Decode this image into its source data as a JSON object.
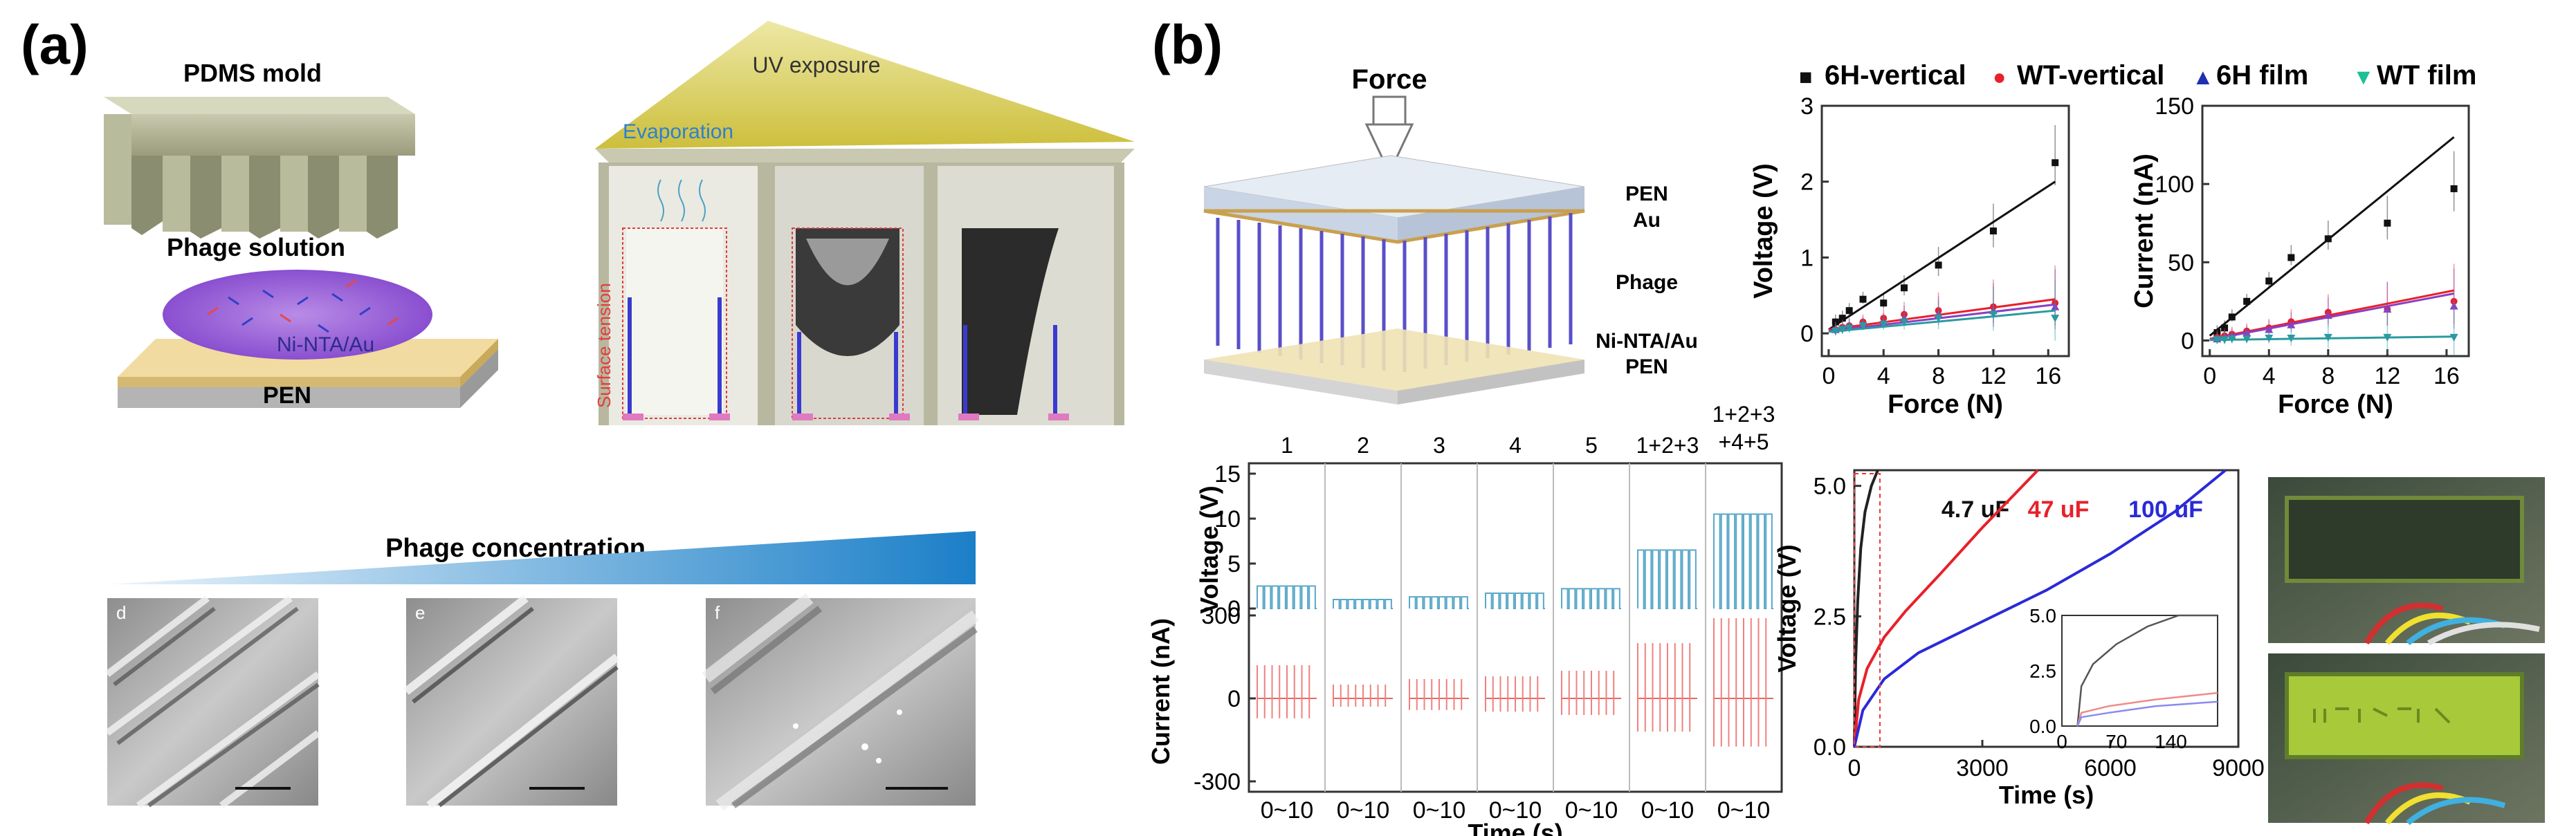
{
  "panel_labels": {
    "a": "(a)",
    "b": "(b)"
  },
  "panel_a": {
    "pdms_mold": "PDMS mold",
    "phage_solution": "Phage solution",
    "ni_nta_au": "Ni-NTA/Au",
    "pen": "PEN",
    "uv_exposure": "UV exposure",
    "evaporation": "Evaporation",
    "surface_tension": "Surface tension",
    "phage_concentration": "Phage concentration",
    "sem_labels": [
      "d",
      "e",
      "f"
    ]
  },
  "panel_b": {
    "force": "Force",
    "layer_labels": [
      "PEN",
      "Au",
      "Phage",
      "Ni-NTA/Au",
      "PEN"
    ]
  },
  "legend": [
    {
      "label": "6H-vertical",
      "marker": "■",
      "color": "#111111"
    },
    {
      "label": "WT-vertical",
      "marker": "●",
      "color": "#e8202a"
    },
    {
      "label": "6H film",
      "marker": "▲",
      "color": "#1f2fb0"
    },
    {
      "label": "WT film",
      "marker": "▼",
      "color": "#1dbf96"
    }
  ],
  "colors": {
    "sem_gradient_start": "#eaf4fb",
    "sem_gradient_end": "#1b7fc8",
    "film_purple": "#8a3fc2",
    "film_teal": "#2a9aa0"
  },
  "chart_data": [
    {
      "type": "scatter",
      "title": "",
      "xlabel": "Force (N)",
      "ylabel": "Voltage (V)",
      "xlim": [
        -0.5,
        17.5
      ],
      "ylim": [
        -0.3,
        3
      ],
      "xticks": [
        "0",
        "4",
        "8",
        "12",
        "16"
      ],
      "yticks": [
        "0",
        "1",
        "2",
        "3"
      ],
      "series": [
        {
          "name": "6H-vertical",
          "x": [
            0.5,
            1,
            1.5,
            2.5,
            4,
            5.5,
            8,
            12,
            16.5
          ],
          "y": [
            0.15,
            0.2,
            0.3,
            0.45,
            0.4,
            0.6,
            0.9,
            1.35,
            2.25
          ],
          "fit": [
            0.05,
            2.0
          ]
        },
        {
          "name": "WT-vertical",
          "x": [
            0.5,
            1,
            1.5,
            2.5,
            4,
            5.5,
            8,
            12,
            16.5
          ],
          "y": [
            0.05,
            0.08,
            0.1,
            0.15,
            0.2,
            0.25,
            0.3,
            0.35,
            0.4
          ],
          "fit": [
            0.05,
            0.45
          ]
        },
        {
          "name": "6H film",
          "x": [
            0.5,
            1,
            1.5,
            2.5,
            4,
            5.5,
            8,
            12,
            16.5
          ],
          "y": [
            0.05,
            0.07,
            0.1,
            0.12,
            0.15,
            0.2,
            0.25,
            0.3,
            0.35
          ],
          "fit": [
            0.03,
            0.38
          ]
        },
        {
          "name": "WT film",
          "x": [
            0.5,
            1,
            1.5,
            2.5,
            4,
            5.5,
            8,
            12,
            16.5
          ],
          "y": [
            0.03,
            0.05,
            0.07,
            0.1,
            0.12,
            0.15,
            0.2,
            0.25,
            0.2
          ],
          "fit": [
            0.02,
            0.3
          ]
        }
      ]
    },
    {
      "type": "scatter",
      "title": "",
      "xlabel": "Force (N)",
      "ylabel": "Current (nA)",
      "xlim": [
        -0.5,
        17.5
      ],
      "ylim": [
        -10,
        150
      ],
      "xticks": [
        "0",
        "4",
        "8",
        "12",
        "16"
      ],
      "yticks": [
        "0",
        "50",
        "100",
        "150"
      ],
      "series": [
        {
          "name": "6H-vertical",
          "x": [
            0.5,
            1,
            1.5,
            2.5,
            4,
            5.5,
            8,
            12,
            16.5
          ],
          "y": [
            5,
            8,
            15,
            25,
            38,
            53,
            65,
            75,
            97
          ],
          "fit": [
            3,
            130
          ]
        },
        {
          "name": "WT-vertical",
          "x": [
            0.5,
            1,
            1.5,
            2.5,
            4,
            5.5,
            8,
            12,
            16.5
          ],
          "y": [
            2,
            3,
            4,
            6,
            8,
            12,
            18,
            20,
            25
          ],
          "fit": [
            1,
            32
          ]
        },
        {
          "name": "6H film",
          "x": [
            0.5,
            1,
            1.5,
            2.5,
            4,
            5.5,
            8,
            12,
            16.5
          ],
          "y": [
            1,
            2,
            3,
            5,
            7,
            10,
            16,
            20,
            22
          ],
          "fit": [
            0.5,
            30
          ]
        },
        {
          "name": "WT film",
          "x": [
            0.5,
            1,
            1.5,
            2.5,
            4,
            5.5,
            8,
            12,
            16.5
          ],
          "y": [
            0.5,
            0.5,
            1,
            1,
            1.5,
            1.5,
            2,
            2,
            2
          ],
          "fit": [
            0.3,
            2.5
          ]
        }
      ]
    },
    {
      "type": "line",
      "title": "",
      "xlabel": "Time (s)",
      "ylabel_top": "Voltage (V)",
      "ylabel_bottom": "Current (nA)",
      "voltage_ticks": [
        "15",
        "10",
        "5",
        "0"
      ],
      "current_ticks": [
        "300",
        "0",
        "-300"
      ],
      "columns": [
        "1",
        "2",
        "3",
        "4",
        "5",
        "1+2+3",
        "1+2+3\n+4+5"
      ],
      "column_lines": [
        [
          "1"
        ],
        [
          "2"
        ],
        [
          "3"
        ],
        [
          "4"
        ],
        [
          "5"
        ],
        [
          "1+2+3"
        ],
        [
          "1+2+3",
          "+4+5"
        ]
      ],
      "x_ticks": [
        "0~10",
        "0~10",
        "0~10",
        "0~10",
        "0~10",
        "0~10",
        "0~10"
      ],
      "voltage_amplitude": [
        2.5,
        1.0,
        1.3,
        1.7,
        2.2,
        6.5,
        10.5
      ],
      "current_amplitude": [
        120,
        50,
        70,
        80,
        100,
        200,
        290
      ]
    },
    {
      "type": "line",
      "title": "",
      "xlabel": "Time (s)",
      "ylabel": "Voltage (V)",
      "xlim": [
        0,
        9000
      ],
      "ylim": [
        0,
        5.3
      ],
      "xticks": [
        "0",
        "3000",
        "6000",
        "9000"
      ],
      "yticks": [
        "0.0",
        "2.5",
        "5.0"
      ],
      "series": [
        {
          "name": "4.7 uF",
          "color": "#222222",
          "x": [
            0,
            30,
            80,
            150,
            250,
            400,
            550
          ],
          "y": [
            0,
            1.6,
            2.8,
            3.8,
            4.5,
            5.0,
            5.3
          ]
        },
        {
          "name": "47 uF",
          "color": "#e8202a",
          "x": [
            0,
            100,
            300,
            700,
            1200,
            2000,
            3000,
            4300
          ],
          "y": [
            0,
            0.9,
            1.5,
            2.1,
            2.6,
            3.3,
            4.2,
            5.3
          ]
        },
        {
          "name": "100 uF",
          "color": "#2a2ad8",
          "x": [
            0,
            200,
            700,
            1500,
            3000,
            4500,
            6000,
            7500,
            8700
          ],
          "y": [
            0,
            0.7,
            1.3,
            1.8,
            2.4,
            3.0,
            3.7,
            4.5,
            5.3
          ]
        }
      ],
      "inset": {
        "xticks": [
          "0",
          "70",
          "140"
        ],
        "yticks": [
          "0.0",
          "2.5",
          "5.0"
        ],
        "xlim": [
          0,
          200
        ],
        "ylim": [
          0,
          5.0
        ]
      }
    }
  ]
}
